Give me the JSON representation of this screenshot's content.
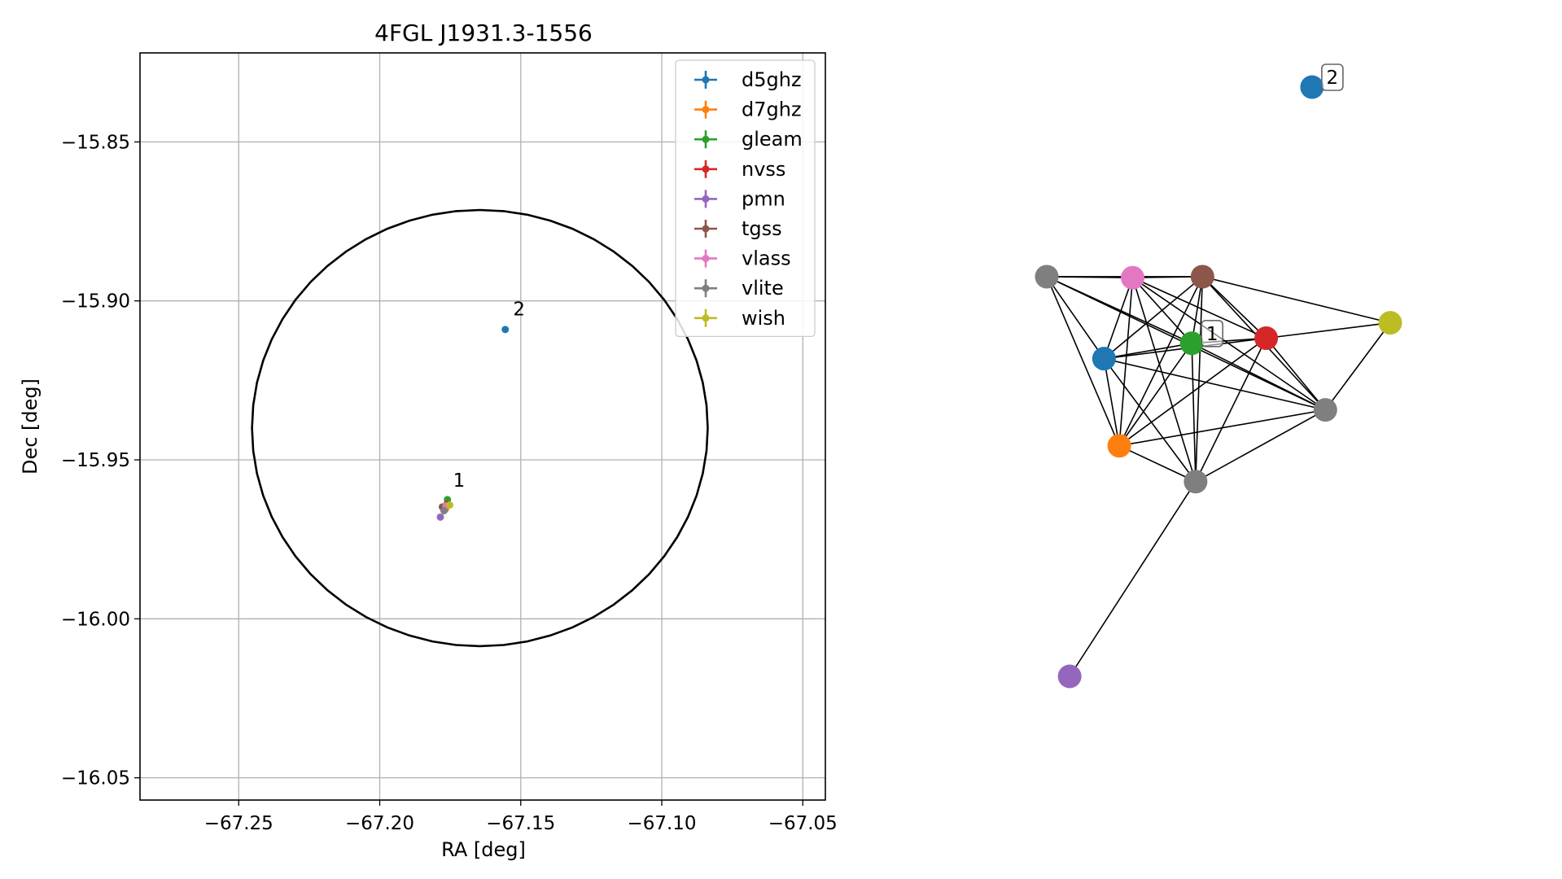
{
  "chart_data": [
    {
      "type": "scatter",
      "title": "4FGL J1931.3-1556",
      "xlabel": "RA [deg]",
      "ylabel": "Dec [deg]",
      "xlim": [
        -67.285,
        -67.042
      ],
      "ylim": [
        -16.057,
        -15.822
      ],
      "xticks": [
        -67.25,
        -67.2,
        -67.15,
        -67.1,
        -67.05
      ],
      "xtick_labels": [
        "−67.25",
        "−67.20",
        "−67.15",
        "−67.10",
        "−67.05"
      ],
      "yticks": [
        -15.85,
        -15.9,
        -15.95,
        -16.0,
        -16.05
      ],
      "ytick_labels": [
        "−15.85",
        "−15.90",
        "−15.95",
        "−16.00",
        "−16.05"
      ],
      "grid": true,
      "legend_position": "top-right",
      "circle": {
        "center_ra": -67.1645,
        "center_dec": -15.94,
        "radius_ra": 0.0808,
        "radius_dec": 0.0686,
        "color": "#000000"
      },
      "series": [
        {
          "name": "d5ghz",
          "color": "#1f77b4",
          "points": [
            {
              "x": -67.1555,
              "y": -15.909
            }
          ]
        },
        {
          "name": "d7ghz",
          "color": "#ff7f0e",
          "points": [
            {
              "x": -67.1767,
              "y": -15.9655
            }
          ]
        },
        {
          "name": "gleam",
          "color": "#2ca02c",
          "points": [
            {
              "x": -67.176,
              "y": -15.9625
            }
          ]
        },
        {
          "name": "nvss",
          "color": "#d62728",
          "points": [
            {
              "x": -67.1762,
              "y": -15.964
            }
          ]
        },
        {
          "name": "pmn",
          "color": "#9467bd",
          "points": [
            {
              "x": -67.1785,
              "y": -15.968
            }
          ]
        },
        {
          "name": "tgss",
          "color": "#8c564b",
          "points": [
            {
              "x": -67.1778,
              "y": -15.9648
            }
          ]
        },
        {
          "name": "vlass",
          "color": "#e377c2",
          "points": [
            {
              "x": -67.1765,
              "y": -15.9645
            }
          ]
        },
        {
          "name": "vlite",
          "color": "#7f7f7f",
          "points": [
            {
              "x": -67.1772,
              "y": -15.966
            }
          ]
        },
        {
          "name": "wish",
          "color": "#bcbd22",
          "points": [
            {
              "x": -67.1752,
              "y": -15.9642
            }
          ]
        }
      ],
      "annotations": [
        {
          "text": "1",
          "x": -67.174,
          "y": -15.9585
        },
        {
          "text": "2",
          "x": -67.1527,
          "y": -15.9045
        }
      ]
    },
    {
      "type": "network",
      "nodes": [
        {
          "id": "d5ghz_2",
          "color": "#1f77b4",
          "x": 0.745,
          "y": 0.95
        },
        {
          "id": "vlite_a",
          "color": "#7f7f7f",
          "x": 0.05,
          "y": 0.58
        },
        {
          "id": "vlass",
          "color": "#e377c2",
          "x": 0.275,
          "y": 0.578
        },
        {
          "id": "tgss",
          "color": "#8c564b",
          "x": 0.458,
          "y": 0.58
        },
        {
          "id": "wish",
          "color": "#bcbd22",
          "x": 0.95,
          "y": 0.49
        },
        {
          "id": "nvss",
          "color": "#d62728",
          "x": 0.625,
          "y": 0.46
        },
        {
          "id": "gleam",
          "color": "#2ca02c",
          "x": 0.43,
          "y": 0.45
        },
        {
          "id": "d5ghz_1",
          "color": "#1f77b4",
          "x": 0.2,
          "y": 0.42
        },
        {
          "id": "vlite_b",
          "color": "#7f7f7f",
          "x": 0.78,
          "y": 0.32
        },
        {
          "id": "d7ghz",
          "color": "#ff7f0e",
          "x": 0.24,
          "y": 0.25
        },
        {
          "id": "vlite_c",
          "color": "#7f7f7f",
          "x": 0.44,
          "y": 0.18
        },
        {
          "id": "pmn",
          "color": "#9467bd",
          "x": 0.11,
          "y": -0.2
        }
      ],
      "edges": [
        [
          "vlite_a",
          "vlass"
        ],
        [
          "vlite_a",
          "tgss"
        ],
        [
          "vlite_a",
          "d5ghz_1"
        ],
        [
          "vlite_a",
          "gleam"
        ],
        [
          "vlite_a",
          "vlite_b"
        ],
        [
          "vlite_a",
          "d7ghz"
        ],
        [
          "vlass",
          "tgss"
        ],
        [
          "vlass",
          "d5ghz_1"
        ],
        [
          "vlass",
          "gleam"
        ],
        [
          "vlass",
          "nvss"
        ],
        [
          "vlass",
          "vlite_b"
        ],
        [
          "vlass",
          "d7ghz"
        ],
        [
          "vlass",
          "vlite_c"
        ],
        [
          "tgss",
          "wish"
        ],
        [
          "tgss",
          "nvss"
        ],
        [
          "tgss",
          "gleam"
        ],
        [
          "tgss",
          "d5ghz_1"
        ],
        [
          "tgss",
          "vlite_b"
        ],
        [
          "tgss",
          "d7ghz"
        ],
        [
          "tgss",
          "vlite_c"
        ],
        [
          "wish",
          "nvss"
        ],
        [
          "wish",
          "vlite_b"
        ],
        [
          "nvss",
          "gleam"
        ],
        [
          "nvss",
          "d5ghz_1"
        ],
        [
          "nvss",
          "vlite_b"
        ],
        [
          "nvss",
          "d7ghz"
        ],
        [
          "nvss",
          "vlite_c"
        ],
        [
          "gleam",
          "d5ghz_1"
        ],
        [
          "gleam",
          "vlite_b"
        ],
        [
          "gleam",
          "d7ghz"
        ],
        [
          "gleam",
          "vlite_c"
        ],
        [
          "d5ghz_1",
          "d7ghz"
        ],
        [
          "d5ghz_1",
          "vlite_b"
        ],
        [
          "d5ghz_1",
          "vlite_c"
        ],
        [
          "vlite_b",
          "d7ghz"
        ],
        [
          "vlite_b",
          "vlite_c"
        ],
        [
          "d7ghz",
          "vlite_c"
        ],
        [
          "vlite_c",
          "pmn"
        ]
      ],
      "labels": [
        {
          "text": "1",
          "node": "gleam"
        },
        {
          "text": "2",
          "node": "d5ghz_2"
        }
      ]
    }
  ]
}
